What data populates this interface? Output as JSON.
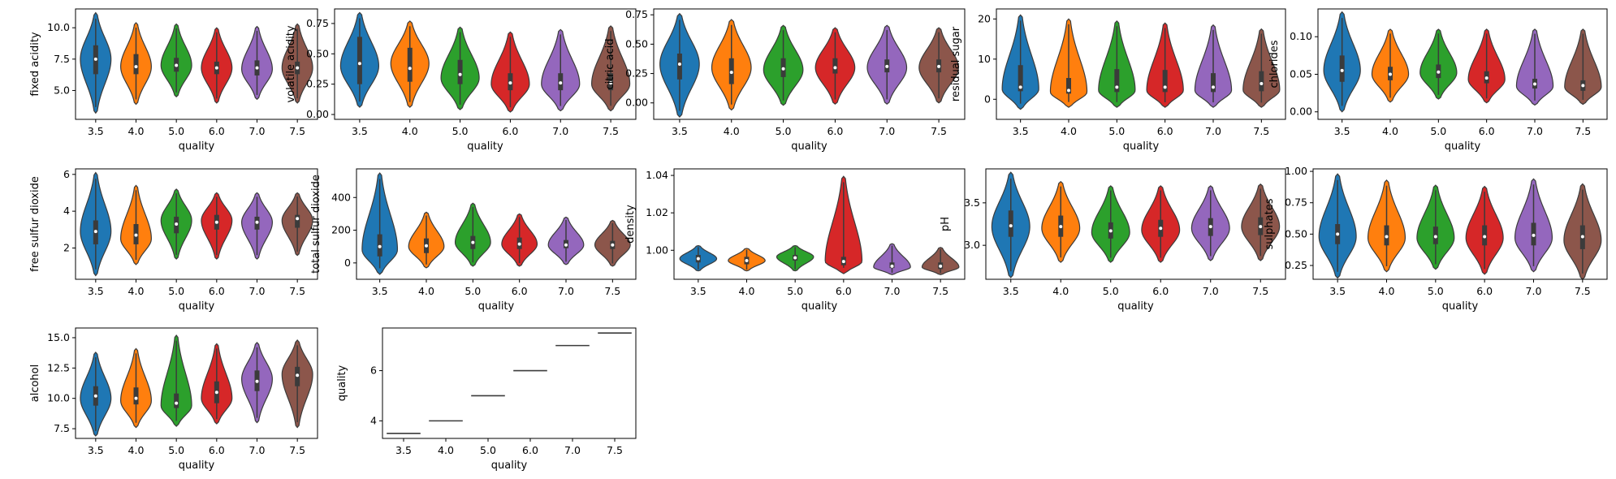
{
  "categories": [
    "3.5",
    "4.0",
    "5.0",
    "6.0",
    "7.0",
    "7.5"
  ],
  "colors": [
    "#1f77b4",
    "#ff7f0e",
    "#2ca02c",
    "#d62728",
    "#9467bd",
    "#8c564b"
  ],
  "chart_data": [
    {
      "type": "violin",
      "title": "",
      "xlabel": "quality",
      "ylabel": "fixed acidity",
      "ylim": [
        2.7,
        11.5
      ],
      "yticks": [
        5.0,
        7.5,
        10.0
      ],
      "series": [
        {
          "category": "3.5",
          "min": 3.2,
          "q1": 6.3,
          "median": 7.5,
          "q3": 8.6,
          "max": 11.2,
          "mode": 7.5
        },
        {
          "category": "4.0",
          "min": 3.9,
          "q1": 6.3,
          "median": 6.9,
          "q3": 7.9,
          "max": 10.4,
          "mode": 6.9
        },
        {
          "category": "5.0",
          "min": 4.5,
          "q1": 6.5,
          "median": 7.0,
          "q3": 7.6,
          "max": 10.3,
          "mode": 7.0
        },
        {
          "category": "6.0",
          "min": 4.0,
          "q1": 6.3,
          "median": 6.8,
          "q3": 7.3,
          "max": 10.0,
          "mode": 6.8
        },
        {
          "category": "7.0",
          "min": 4.3,
          "q1": 6.2,
          "median": 6.8,
          "q3": 7.4,
          "max": 10.1,
          "mode": 6.7
        },
        {
          "category": "7.5",
          "min": 4.0,
          "q1": 6.3,
          "median": 6.8,
          "q3": 7.3,
          "max": 10.3,
          "mode": 6.8
        }
      ]
    },
    {
      "type": "violin",
      "title": "",
      "xlabel": "quality",
      "ylabel": "volatile acidity",
      "ylim": [
        -0.04,
        0.87
      ],
      "yticks": [
        0.0,
        0.25,
        0.5,
        0.75
      ],
      "series": [
        {
          "category": "3.5",
          "min": 0.06,
          "q1": 0.25,
          "median": 0.42,
          "q3": 0.64,
          "max": 0.84,
          "mode": 0.4
        },
        {
          "category": "4.0",
          "min": 0.06,
          "q1": 0.27,
          "median": 0.38,
          "q3": 0.55,
          "max": 0.77,
          "mode": 0.42
        },
        {
          "category": "5.0",
          "min": 0.04,
          "q1": 0.25,
          "median": 0.33,
          "q3": 0.45,
          "max": 0.72,
          "mode": 0.3
        },
        {
          "category": "6.0",
          "min": 0.02,
          "q1": 0.2,
          "median": 0.26,
          "q3": 0.34,
          "max": 0.68,
          "mode": 0.25
        },
        {
          "category": "7.0",
          "min": 0.03,
          "q1": 0.2,
          "median": 0.26,
          "q3": 0.34,
          "max": 0.7,
          "mode": 0.25
        },
        {
          "category": "7.5",
          "min": 0.03,
          "q1": 0.2,
          "median": 0.26,
          "q3": 0.34,
          "max": 0.73,
          "mode": 0.25
        }
      ]
    },
    {
      "type": "violin",
      "title": "",
      "xlabel": "quality",
      "ylabel": "citric acid",
      "ylim": [
        -0.14,
        0.8
      ],
      "yticks": [
        0.0,
        0.25,
        0.5,
        0.75
      ],
      "series": [
        {
          "category": "3.5",
          "min": -0.12,
          "q1": 0.2,
          "median": 0.33,
          "q3": 0.42,
          "max": 0.76,
          "mode": 0.33
        },
        {
          "category": "4.0",
          "min": -0.06,
          "q1": 0.16,
          "median": 0.26,
          "q3": 0.38,
          "max": 0.71,
          "mode": 0.3
        },
        {
          "category": "5.0",
          "min": -0.02,
          "q1": 0.22,
          "median": 0.29,
          "q3": 0.38,
          "max": 0.66,
          "mode": 0.28
        },
        {
          "category": "6.0",
          "min": -0.01,
          "q1": 0.25,
          "median": 0.3,
          "q3": 0.38,
          "max": 0.64,
          "mode": 0.3
        },
        {
          "category": "7.0",
          "min": -0.01,
          "q1": 0.26,
          "median": 0.31,
          "q3": 0.37,
          "max": 0.66,
          "mode": 0.3
        },
        {
          "category": "7.5",
          "min": 0.0,
          "q1": 0.26,
          "median": 0.31,
          "q3": 0.37,
          "max": 0.64,
          "mode": 0.3
        }
      ]
    },
    {
      "type": "violin",
      "title": "",
      "xlabel": "quality",
      "ylabel": "residual sugar",
      "ylim": [
        -5,
        22.5
      ],
      "yticks": [
        0,
        10,
        20
      ],
      "series": [
        {
          "category": "3.5",
          "min": -2.5,
          "q1": 2.0,
          "median": 3.0,
          "q3": 8.5,
          "max": 21.0,
          "mode": 2.5
        },
        {
          "category": "4.0",
          "min": -2.0,
          "q1": 1.4,
          "median": 2.2,
          "q3": 5.3,
          "max": 20.0,
          "mode": 1.8
        },
        {
          "category": "5.0",
          "min": -2.0,
          "q1": 1.8,
          "median": 3.0,
          "q3": 7.5,
          "max": 19.5,
          "mode": 2.2
        },
        {
          "category": "6.0",
          "min": -2.0,
          "q1": 1.8,
          "median": 3.0,
          "q3": 7.3,
          "max": 19.0,
          "mode": 2.2
        },
        {
          "category": "7.0",
          "min": -2.0,
          "q1": 1.8,
          "median": 3.0,
          "q3": 6.5,
          "max": 18.5,
          "mode": 2.2
        },
        {
          "category": "7.5",
          "min": -2.0,
          "q1": 2.0,
          "median": 3.9,
          "q3": 7.0,
          "max": 17.5,
          "mode": 2.3
        }
      ]
    },
    {
      "type": "violin",
      "title": "",
      "xlabel": "quality",
      "ylabel": "chlorides",
      "ylim": [
        -0.01,
        0.137
      ],
      "yticks": [
        0.0,
        0.05,
        0.1
      ],
      "series": [
        {
          "category": "3.5",
          "min": 0.0,
          "q1": 0.04,
          "median": 0.055,
          "q3": 0.075,
          "max": 0.133,
          "mode": 0.055
        },
        {
          "category": "4.0",
          "min": 0.013,
          "q1": 0.042,
          "median": 0.05,
          "q3": 0.06,
          "max": 0.11,
          "mode": 0.05
        },
        {
          "category": "5.0",
          "min": 0.017,
          "q1": 0.045,
          "median": 0.053,
          "q3": 0.063,
          "max": 0.11,
          "mode": 0.052
        },
        {
          "category": "6.0",
          "min": 0.012,
          "q1": 0.038,
          "median": 0.045,
          "q3": 0.054,
          "max": 0.11,
          "mode": 0.043
        },
        {
          "category": "7.0",
          "min": 0.009,
          "q1": 0.031,
          "median": 0.037,
          "q3": 0.044,
          "max": 0.11,
          "mode": 0.034
        },
        {
          "category": "7.5",
          "min": 0.01,
          "q1": 0.028,
          "median": 0.035,
          "q3": 0.042,
          "max": 0.11,
          "mode": 0.033
        }
      ]
    },
    {
      "type": "violin",
      "title": "",
      "xlabel": "quality",
      "ylabel": "free sulfur dioxide",
      "ylim": [
        0.3,
        6.3
      ],
      "yticks": [
        2,
        4,
        6
      ],
      "series": [
        {
          "category": "3.5",
          "min": 0.5,
          "q1": 2.2,
          "median": 2.9,
          "q3": 3.5,
          "max": 6.1,
          "mode": 2.9
        },
        {
          "category": "4.0",
          "min": 1.1,
          "q1": 2.2,
          "median": 2.7,
          "q3": 3.3,
          "max": 5.4,
          "mode": 2.5
        },
        {
          "category": "5.0",
          "min": 1.4,
          "q1": 2.8,
          "median": 3.3,
          "q3": 3.7,
          "max": 5.2,
          "mode": 3.5
        },
        {
          "category": "6.0",
          "min": 1.4,
          "q1": 3.0,
          "median": 3.4,
          "q3": 3.8,
          "max": 5.0,
          "mode": 3.5
        },
        {
          "category": "7.0",
          "min": 1.4,
          "q1": 3.0,
          "median": 3.4,
          "q3": 3.7,
          "max": 5.0,
          "mode": 3.4
        },
        {
          "category": "7.5",
          "min": 1.6,
          "q1": 3.1,
          "median": 3.6,
          "q3": 3.8,
          "max": 5.0,
          "mode": 3.5
        }
      ]
    },
    {
      "type": "violin",
      "title": "",
      "xlabel": "quality",
      "ylabel": "total sulfur dioxide",
      "ylim": [
        -100,
        575
      ],
      "yticks": [
        0,
        200,
        400
      ],
      "series": [
        {
          "category": "3.5",
          "min": -70,
          "q1": 40,
          "median": 100,
          "q3": 175,
          "max": 550,
          "mode": 80
        },
        {
          "category": "4.0",
          "min": -30,
          "q1": 60,
          "median": 105,
          "q3": 150,
          "max": 310,
          "mode": 100
        },
        {
          "category": "5.0",
          "min": -20,
          "q1": 85,
          "median": 125,
          "q3": 165,
          "max": 365,
          "mode": 125
        },
        {
          "category": "6.0",
          "min": -20,
          "q1": 85,
          "median": 115,
          "q3": 155,
          "max": 300,
          "mode": 115
        },
        {
          "category": "7.0",
          "min": -10,
          "q1": 90,
          "median": 110,
          "q3": 140,
          "max": 280,
          "mode": 110
        },
        {
          "category": "7.5",
          "min": -20,
          "q1": 85,
          "median": 110,
          "q3": 135,
          "max": 260,
          "mode": 110
        }
      ]
    },
    {
      "type": "violin",
      "title": "",
      "xlabel": "quality",
      "ylabel": "density",
      "ylim": [
        0.9845,
        1.0435
      ],
      "yticks": [
        1.0,
        1.02,
        1.04
      ],
      "series": [
        {
          "category": "3.5",
          "min": 0.989,
          "q1": 0.9935,
          "median": 0.9955,
          "q3": 0.9975,
          "max": 1.0025,
          "mode": 0.9955
        },
        {
          "category": "4.0",
          "min": 0.989,
          "q1": 0.9925,
          "median": 0.9945,
          "q3": 0.9965,
          "max": 1.001,
          "mode": 0.9945
        },
        {
          "category": "5.0",
          "min": 0.989,
          "q1": 0.9945,
          "median": 0.996,
          "q3": 0.9975,
          "max": 1.0025,
          "mode": 0.9965
        },
        {
          "category": "6.0",
          "min": 0.9875,
          "q1": 0.992,
          "median": 0.994,
          "q3": 0.9965,
          "max": 1.0395,
          "mode": 0.994
        },
        {
          "category": "7.0",
          "min": 0.987,
          "q1": 0.9905,
          "median": 0.9915,
          "q3": 0.9935,
          "max": 1.0035,
          "mode": 0.991
        },
        {
          "category": "7.5",
          "min": 0.987,
          "q1": 0.99,
          "median": 0.9915,
          "q3": 0.9935,
          "max": 1.0015,
          "mode": 0.991
        }
      ]
    },
    {
      "type": "violin",
      "title": "",
      "xlabel": "quality",
      "ylabel": "pH",
      "ylim": [
        2.6,
        3.9
      ],
      "yticks": [
        3.0,
        3.5
      ],
      "series": [
        {
          "category": "3.5",
          "min": 2.62,
          "q1": 3.1,
          "median": 3.23,
          "q3": 3.41,
          "max": 3.86,
          "mode": 3.22
        },
        {
          "category": "4.0",
          "min": 2.8,
          "q1": 3.1,
          "median": 3.22,
          "q3": 3.35,
          "max": 3.75,
          "mode": 3.2
        },
        {
          "category": "5.0",
          "min": 2.8,
          "q1": 3.08,
          "median": 3.17,
          "q3": 3.27,
          "max": 3.7,
          "mode": 3.15
        },
        {
          "category": "6.0",
          "min": 2.8,
          "q1": 3.1,
          "median": 3.2,
          "q3": 3.3,
          "max": 3.7,
          "mode": 3.18
        },
        {
          "category": "7.0",
          "min": 2.82,
          "q1": 3.11,
          "median": 3.22,
          "q3": 3.32,
          "max": 3.7,
          "mode": 3.2
        },
        {
          "category": "7.5",
          "min": 2.82,
          "q1": 3.12,
          "median": 3.22,
          "q3": 3.33,
          "max": 3.72,
          "mode": 3.22
        }
      ]
    },
    {
      "type": "violin",
      "title": "",
      "xlabel": "quality",
      "ylabel": "sulphates",
      "ylim": [
        0.14,
        1.02
      ],
      "yticks": [
        0.25,
        0.5,
        0.75,
        1.0
      ],
      "series": [
        {
          "category": "3.5",
          "min": 0.15,
          "q1": 0.42,
          "median": 0.5,
          "q3": 0.58,
          "max": 0.98,
          "mode": 0.48
        },
        {
          "category": "4.0",
          "min": 0.2,
          "q1": 0.41,
          "median": 0.48,
          "q3": 0.57,
          "max": 0.93,
          "mode": 0.47
        },
        {
          "category": "5.0",
          "min": 0.22,
          "q1": 0.42,
          "median": 0.48,
          "q3": 0.56,
          "max": 0.89,
          "mode": 0.47
        },
        {
          "category": "6.0",
          "min": 0.18,
          "q1": 0.41,
          "median": 0.48,
          "q3": 0.57,
          "max": 0.88,
          "mode": 0.47
        },
        {
          "category": "7.0",
          "min": 0.2,
          "q1": 0.41,
          "median": 0.49,
          "q3": 0.59,
          "max": 0.94,
          "mode": 0.47
        },
        {
          "category": "7.5",
          "min": 0.14,
          "q1": 0.38,
          "median": 0.48,
          "q3": 0.57,
          "max": 0.9,
          "mode": 0.45
        }
      ]
    },
    {
      "type": "violin",
      "title": "",
      "xlabel": "quality",
      "ylabel": "alcohol",
      "ylim": [
        6.7,
        15.8
      ],
      "yticks": [
        7.5,
        10.0,
        12.5,
        15.0
      ],
      "series": [
        {
          "category": "3.5",
          "min": 6.9,
          "q1": 9.4,
          "median": 10.2,
          "q3": 11.0,
          "max": 13.8,
          "mode": 10.0
        },
        {
          "category": "4.0",
          "min": 7.6,
          "q1": 9.5,
          "median": 10.0,
          "q3": 10.9,
          "max": 14.1,
          "mode": 9.8
        },
        {
          "category": "5.0",
          "min": 7.7,
          "q1": 9.2,
          "median": 9.6,
          "q3": 10.4,
          "max": 15.2,
          "mode": 9.4
        },
        {
          "category": "6.0",
          "min": 7.9,
          "q1": 9.6,
          "median": 10.5,
          "q3": 11.4,
          "max": 14.5,
          "mode": 10.0
        },
        {
          "category": "7.0",
          "min": 8.0,
          "q1": 10.6,
          "median": 11.4,
          "q3": 12.3,
          "max": 14.6,
          "mode": 11.6
        },
        {
          "category": "7.5",
          "min": 7.6,
          "q1": 11.0,
          "median": 11.9,
          "q3": 12.6,
          "max": 14.8,
          "mode": 12.0
        }
      ]
    },
    {
      "type": "violin",
      "title": "",
      "xlabel": "quality",
      "ylabel": "quality",
      "ylim": [
        3.3,
        7.7
      ],
      "yticks": [
        4,
        6
      ],
      "series": [
        {
          "category": "3.5",
          "value": 3.5
        },
        {
          "category": "4.0",
          "value": 4.0
        },
        {
          "category": "5.0",
          "value": 5.0
        },
        {
          "category": "6.0",
          "value": 6.0
        },
        {
          "category": "7.0",
          "value": 7.0
        },
        {
          "category": "7.5",
          "value": 7.5
        }
      ]
    }
  ]
}
